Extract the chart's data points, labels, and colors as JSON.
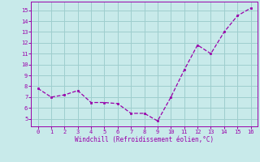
{
  "x": [
    0,
    1,
    2,
    3,
    4,
    5,
    6,
    7,
    8,
    9,
    10,
    11,
    12,
    13,
    14,
    15,
    16
  ],
  "y": [
    7.8,
    7.0,
    7.2,
    7.6,
    6.5,
    6.5,
    6.4,
    5.5,
    5.5,
    4.8,
    7.0,
    9.5,
    11.8,
    11.0,
    13.0,
    14.5,
    15.2
  ],
  "line_color": "#9900aa",
  "marker_color": "#9900aa",
  "bg_color": "#c8eaea",
  "grid_color": "#9ecece",
  "xlabel": "Windchill (Refroidissement éolien,°C)",
  "xlabel_color": "#9900aa",
  "tick_color": "#9900aa",
  "xlim": [
    -0.5,
    16.5
  ],
  "ylim": [
    4.3,
    15.8
  ],
  "yticks": [
    5,
    6,
    7,
    8,
    9,
    10,
    11,
    12,
    13,
    14,
    15
  ],
  "xticks": [
    0,
    1,
    2,
    3,
    4,
    5,
    6,
    7,
    8,
    9,
    10,
    11,
    12,
    13,
    14,
    15,
    16
  ]
}
